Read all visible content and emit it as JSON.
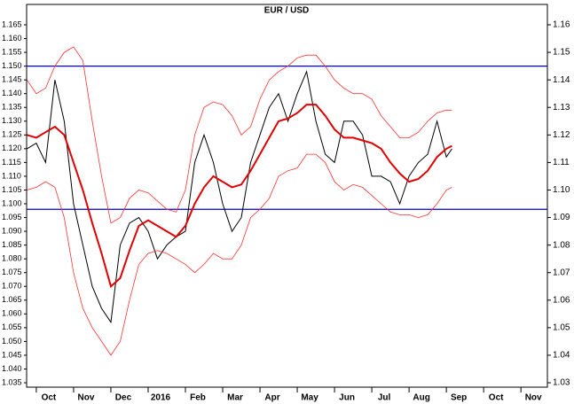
{
  "chart_data": {
    "type": "line",
    "title": "EUR / USD",
    "x": [
      -0.25,
      0,
      0.25,
      0.5,
      0.75,
      1,
      1.25,
      1.5,
      1.75,
      2,
      2.25,
      2.5,
      2.75,
      3,
      3.25,
      3.5,
      3.75,
      4,
      4.25,
      4.5,
      4.75,
      5,
      5.25,
      5.5,
      5.75,
      6,
      6.25,
      6.5,
      6.75,
      7,
      7.25,
      7.5,
      7.75,
      8,
      8.25,
      8.5,
      8.75,
      9,
      9.25,
      9.5,
      9.75,
      10,
      10.25,
      10.5,
      10.75,
      11,
      11.15
    ],
    "series": [
      {
        "color": "#000000",
        "width": 1,
        "values": [
          1.12,
          1.122,
          1.115,
          1.145,
          1.13,
          1.1,
          1.085,
          1.07,
          1.062,
          1.057,
          1.085,
          1.093,
          1.095,
          1.09,
          1.08,
          1.085,
          1.088,
          1.09,
          1.115,
          1.125,
          1.115,
          1.1,
          1.09,
          1.095,
          1.115,
          1.125,
          1.135,
          1.14,
          1.13,
          1.14,
          1.148,
          1.13,
          1.118,
          1.115,
          1.13,
          1.13,
          1.125,
          1.11,
          1.11,
          1.108,
          1.1,
          1.11,
          1.115,
          1.118,
          1.13,
          1.117,
          1.12
        ]
      },
      {
        "color": "#e00000",
        "width": 2,
        "values": [
          1.125,
          1.124,
          1.126,
          1.128,
          1.125,
          1.115,
          1.105,
          1.093,
          1.082,
          1.07,
          1.073,
          1.083,
          1.092,
          1.094,
          1.092,
          1.09,
          1.088,
          1.092,
          1.1,
          1.106,
          1.11,
          1.108,
          1.106,
          1.107,
          1.112,
          1.118,
          1.124,
          1.13,
          1.131,
          1.133,
          1.136,
          1.136,
          1.132,
          1.127,
          1.124,
          1.124,
          1.123,
          1.122,
          1.12,
          1.115,
          1.111,
          1.108,
          1.109,
          1.112,
          1.117,
          1.12,
          1.121
        ]
      },
      {
        "color": "#ff3030",
        "width": 0.8,
        "values": [
          1.145,
          1.14,
          1.142,
          1.15,
          1.155,
          1.157,
          1.152,
          1.13,
          1.11,
          1.093,
          1.095,
          1.102,
          1.105,
          1.104,
          1.101,
          1.098,
          1.097,
          1.105,
          1.125,
          1.135,
          1.137,
          1.136,
          1.132,
          1.125,
          1.128,
          1.138,
          1.145,
          1.148,
          1.15,
          1.153,
          1.154,
          1.154,
          1.15,
          1.145,
          1.142,
          1.14,
          1.14,
          1.138,
          1.132,
          1.128,
          1.124,
          1.124,
          1.126,
          1.13,
          1.133,
          1.134,
          1.134
        ]
      },
      {
        "color": "#ff3030",
        "width": 0.8,
        "values": [
          1.105,
          1.106,
          1.108,
          1.106,
          1.095,
          1.075,
          1.062,
          1.055,
          1.05,
          1.045,
          1.05,
          1.065,
          1.078,
          1.082,
          1.083,
          1.082,
          1.08,
          1.078,
          1.075,
          1.078,
          1.082,
          1.08,
          1.08,
          1.085,
          1.095,
          1.098,
          1.102,
          1.11,
          1.112,
          1.113,
          1.118,
          1.118,
          1.115,
          1.108,
          1.105,
          1.107,
          1.106,
          1.103,
          1.1,
          1.097,
          1.096,
          1.096,
          1.095,
          1.096,
          1.1,
          1.105,
          1.106
        ]
      }
    ],
    "hlines": [
      1.15,
      1.098
    ],
    "hline_color": "#0000cc",
    "xlim": [
      -0.26,
      13.71
    ],
    "xticks": [
      {
        "value": 0,
        "label": "Oct"
      },
      {
        "value": 1,
        "label": "Nov"
      },
      {
        "value": 2,
        "label": "Dec"
      },
      {
        "value": 3,
        "label": "2016"
      },
      {
        "value": 4,
        "label": "Feb"
      },
      {
        "value": 5,
        "label": "Mar"
      },
      {
        "value": 6,
        "label": "Apr"
      },
      {
        "value": 7,
        "label": "May"
      },
      {
        "value": 8,
        "label": "Jun"
      },
      {
        "value": 9,
        "label": "Jul"
      },
      {
        "value": 10,
        "label": "Aug"
      },
      {
        "value": 11,
        "label": "Sep"
      },
      {
        "value": 12,
        "label": "Oct"
      },
      {
        "value": 13,
        "label": "Nov"
      }
    ],
    "ylim": [
      1.0334,
      1.1724
    ],
    "yticks": [
      1.035,
      {
        "value": 1.04,
        "label": "1.040"
      },
      1.045,
      {
        "value": 1.05,
        "label": "1.050"
      },
      1.055,
      {
        "value": 1.06,
        "label": "1.060"
      },
      1.065,
      {
        "value": 1.07,
        "label": "1.070"
      },
      1.075,
      {
        "value": 1.08,
        "label": "1.080"
      },
      1.085,
      {
        "value": 1.09,
        "label": "1.090"
      },
      1.095,
      {
        "value": 1.1,
        "label": "1.100"
      },
      1.105,
      {
        "value": 1.11,
        "label": "1.110"
      },
      1.115,
      {
        "value": 1.12,
        "label": "1.120"
      },
      1.125,
      {
        "value": 1.13,
        "label": "1.130"
      },
      1.135,
      {
        "value": 1.14,
        "label": "1.140"
      },
      1.145,
      {
        "value": 1.15,
        "label": "1.150"
      },
      1.155,
      {
        "value": 1.16,
        "label": "1.160"
      },
      1.165
    ],
    "y2lim": [
      1.0284,
      1.1674
    ],
    "y2ticks": [
      1.03,
      1.04,
      1.05,
      1.06,
      1.07,
      1.08,
      1.09,
      {
        "value": 1.1,
        "label": "1.10"
      },
      1.11,
      1.12,
      1.13,
      1.14,
      1.15,
      1.16
    ]
  }
}
